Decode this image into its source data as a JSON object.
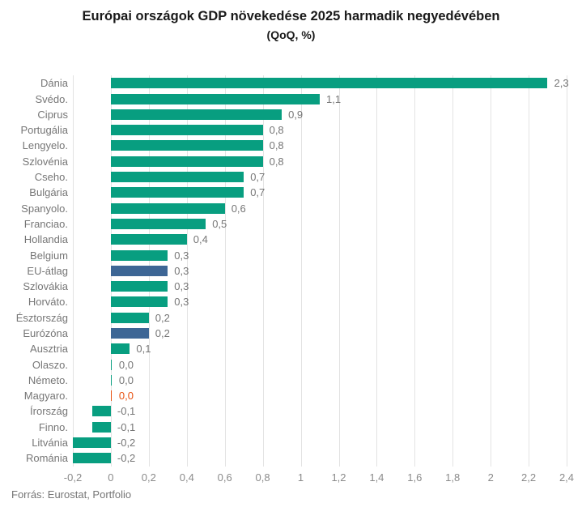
{
  "title": "Európai országok GDP növekedése 2025 harmadik negyedévében",
  "subtitle": "(QoQ, %)",
  "source": "Forrás: Eurostat, Portfolio",
  "colors": {
    "background": "#ffffff",
    "bar_default": "#089e80",
    "bar_aggregate": "#3d6695",
    "bar_accent": "#e8500f",
    "value_label": "#767676",
    "value_label_accent": "#e8500f",
    "category_label": "#767676",
    "tick_label": "#8a8a8a",
    "grid": "#e3e3e3",
    "title_text": "#191919",
    "source_text": "#767676"
  },
  "chart_data": {
    "type": "bar",
    "orientation": "horizontal",
    "title": "Európai országok GDP növekedése 2025 harmadik negyedévében",
    "subtitle": "(QoQ, %)",
    "categories": [
      "Dánia",
      "Svédo.",
      "Ciprus",
      "Portugália",
      "Lengyelo.",
      "Szlovénia",
      "Cseho.",
      "Bulgária",
      "Spanyolo.",
      "Franciao.",
      "Hollandia",
      "Belgium",
      "EU-átlag",
      "Szlovákia",
      "Horváto.",
      "Észtország",
      "Eurózóna",
      "Ausztria",
      "Olaszo.",
      "Németo.",
      "Magyaro.",
      "Írország",
      "Finno.",
      "Litvánia",
      "Románia"
    ],
    "values": [
      2.3,
      1.1,
      0.9,
      0.8,
      0.8,
      0.8,
      0.7,
      0.7,
      0.6,
      0.5,
      0.4,
      0.3,
      0.3,
      0.3,
      0.3,
      0.2,
      0.2,
      0.1,
      0,
      0,
      0,
      -0.1,
      -0.1,
      -0.2,
      -0.2
    ],
    "value_labels": [
      "2,3",
      "1,1",
      "0,9",
      "0,8",
      "0,8",
      "0,8",
      "0,7",
      "0,7",
      "0,6",
      "0,5",
      "0,4",
      "0,3",
      "0,3",
      "0,3",
      "0,3",
      "0,2",
      "0,2",
      "0,1",
      "0,0",
      "0,0",
      "0,0",
      "-0,1",
      "-0,1",
      "-0,2",
      "-0,2"
    ],
    "bar_styles": [
      "default",
      "default",
      "default",
      "default",
      "default",
      "default",
      "default",
      "default",
      "default",
      "default",
      "default",
      "default",
      "aggregate",
      "default",
      "default",
      "default",
      "aggregate",
      "default",
      "default",
      "default",
      "accent",
      "default",
      "default",
      "default",
      "default"
    ],
    "xlim": [
      -0.2,
      2.4
    ],
    "xticks": [
      -0.2,
      0,
      0.2,
      0.4,
      0.6,
      0.8,
      1,
      1.2,
      1.4,
      1.6,
      1.8,
      2,
      2.2,
      2.4
    ],
    "xtick_labels": [
      "-0,2",
      "0",
      "0,2",
      "0,4",
      "0,6",
      "0,8",
      "1",
      "1,2",
      "1,4",
      "1,6",
      "1,8",
      "2",
      "2,2",
      "2,4"
    ],
    "grid": true,
    "legend": false,
    "source": "Forrás: Eurostat, Portfolio"
  }
}
